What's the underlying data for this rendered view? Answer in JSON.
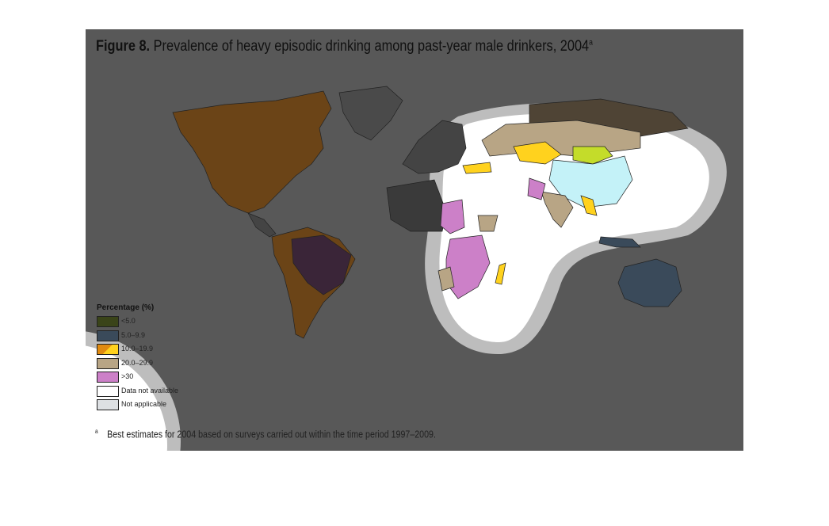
{
  "figure": {
    "title": {
      "label": "Figure 8.",
      "text": "Prevalence of heavy episodic drinking among past-year male drinkers, 2004",
      "superscript": "a"
    },
    "legend": {
      "title": "Percentage (%)",
      "items": [
        "<5.0",
        "5.0–9.9",
        "10.0–19.9",
        "20.0–29.9",
        ">30",
        "Data not available",
        "Not applicable"
      ]
    },
    "footnote": {
      "marker": "a",
      "text": "Best estimates for 2004 based on surveys carried out within the time period 1997–2009."
    }
  }
}
